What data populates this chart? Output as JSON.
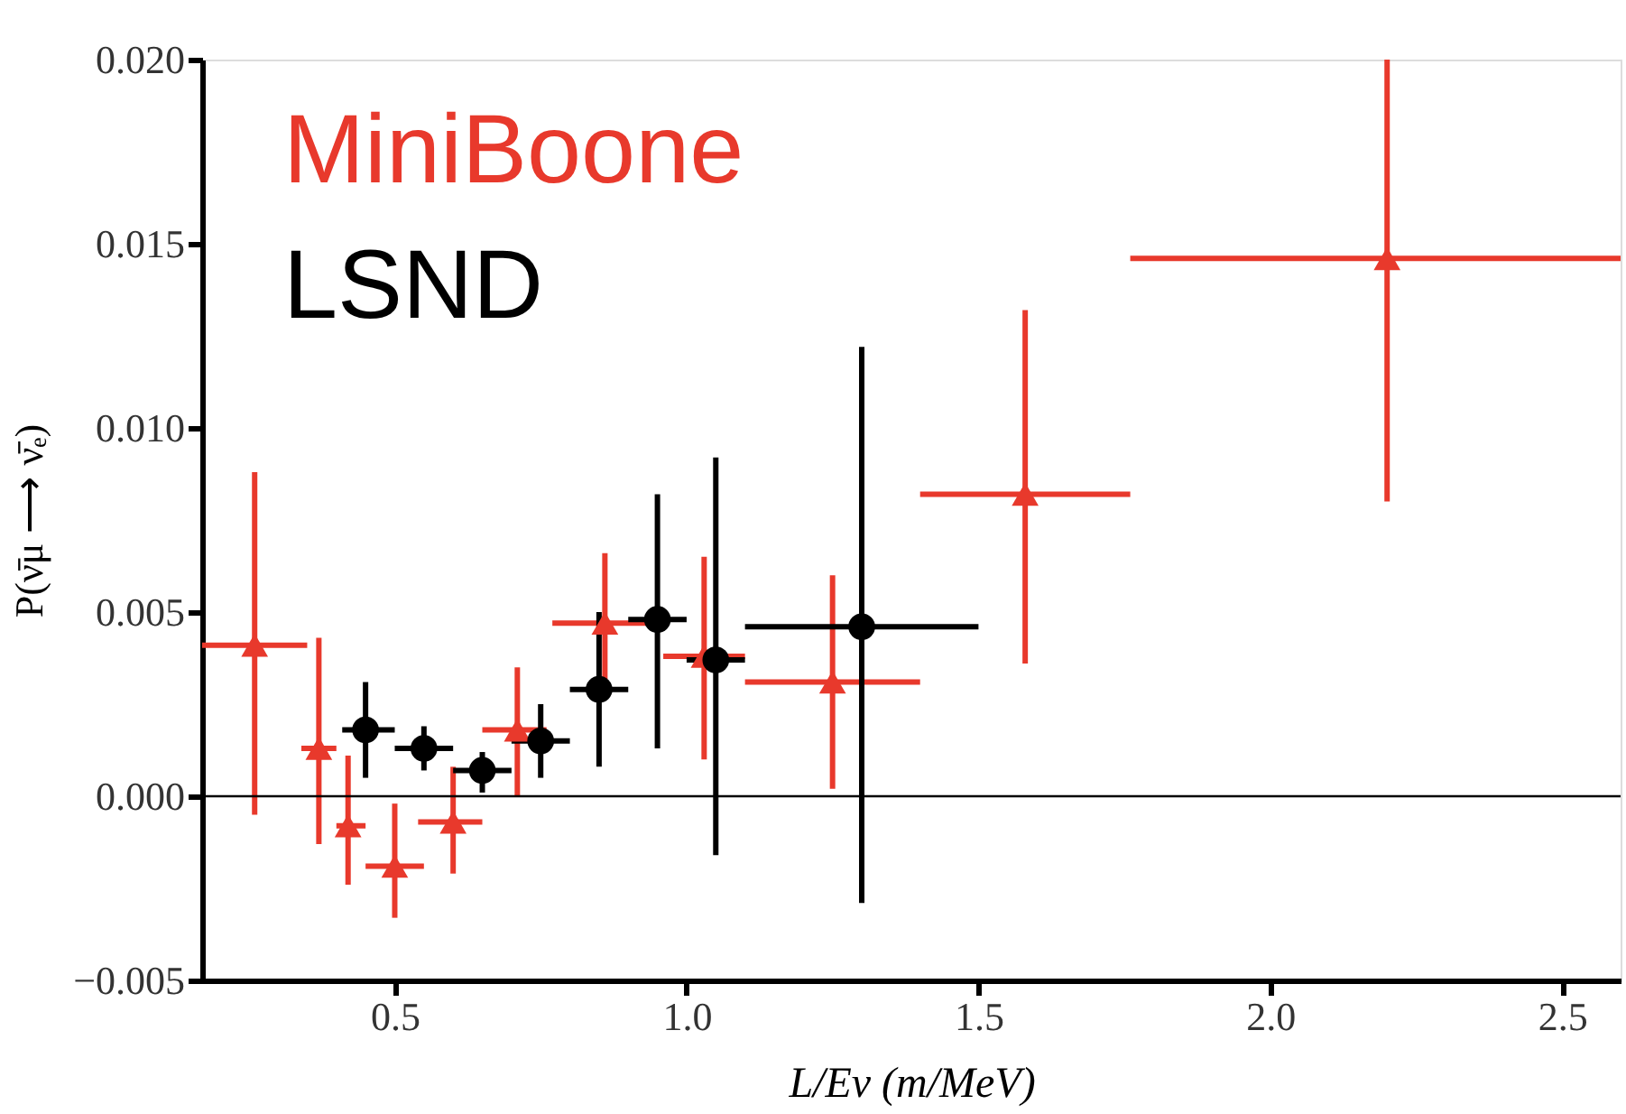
{
  "chart_data": {
    "type": "scatter",
    "xlabel": "L/Eν (m/MeV)",
    "ylabel": "P(ν̄μ ⟶ ν̄ₑ)",
    "series": [
      {
        "name": "MiniBoone",
        "color": "#e8392c",
        "marker": "triangle",
        "x": [
          0.26,
          0.37,
          0.42,
          0.5,
          0.6,
          0.71,
          0.86,
          1.03,
          1.25,
          1.58,
          2.2
        ],
        "values": [
          0.0041,
          0.0013,
          -0.0008,
          -0.0019,
          -0.0007,
          0.0018,
          0.0047,
          0.0038,
          0.0031,
          0.0082,
          0.0146
        ],
        "errors": [
          [
            -0.0005,
            0.0088
          ],
          [
            -0.0013,
            0.0043
          ],
          [
            -0.0024,
            0.0011
          ],
          [
            -0.0033,
            -0.0002
          ],
          [
            -0.0021,
            0.0008
          ],
          [
            0.0,
            0.0035
          ],
          [
            0.003,
            0.0066
          ],
          [
            0.001,
            0.0065
          ],
          [
            0.0002,
            0.006
          ],
          [
            0.0036,
            0.0132
          ],
          [
            0.008,
            0.02
          ]
        ],
        "xerrors": [
          [
            0.17,
            0.35
          ],
          [
            0.34,
            0.4
          ],
          [
            0.4,
            0.45
          ],
          [
            0.45,
            0.55
          ],
          [
            0.54,
            0.65
          ],
          [
            0.65,
            0.76
          ],
          [
            0.77,
            0.96
          ],
          [
            0.96,
            1.1
          ],
          [
            1.1,
            1.4
          ],
          [
            1.4,
            1.76
          ],
          [
            1.76,
            2.6
          ]
        ]
      },
      {
        "name": "LSND",
        "color": "#000000",
        "marker": "circle",
        "x": [
          0.45,
          0.55,
          0.65,
          0.75,
          0.85,
          0.95,
          1.05,
          1.3
        ],
        "values": [
          0.0018,
          0.0013,
          0.0007,
          0.0015,
          0.0029,
          0.0048,
          0.0037,
          0.0046
        ],
        "errors": [
          [
            0.0005,
            0.0031
          ],
          [
            0.0007,
            0.0019
          ],
          [
            0.0001,
            0.0012
          ],
          [
            0.0005,
            0.0025
          ],
          [
            0.0008,
            0.005
          ],
          [
            0.0013,
            0.0082
          ],
          [
            -0.0016,
            0.0092
          ],
          [
            -0.0029,
            0.0122
          ]
        ],
        "xerrors": [
          [
            0.41,
            0.5
          ],
          [
            0.5,
            0.6
          ],
          [
            0.6,
            0.7
          ],
          [
            0.7,
            0.8
          ],
          [
            0.8,
            0.9
          ],
          [
            0.9,
            1.0
          ],
          [
            1.0,
            1.1
          ],
          [
            1.1,
            1.5
          ]
        ]
      }
    ],
    "xlim": [
      0.17,
      2.6
    ],
    "ylim": [
      -0.005,
      0.02
    ],
    "xticks": [
      {
        "value": 0.5,
        "label": "0.5"
      },
      {
        "value": 1.0,
        "label": "1.0"
      },
      {
        "value": 1.5,
        "label": "1.5"
      },
      {
        "value": 2.0,
        "label": "2.0"
      },
      {
        "value": 2.5,
        "label": "2.5"
      }
    ],
    "yticks": [
      {
        "value": -0.005,
        "label": "−0.005"
      },
      {
        "value": 0.0,
        "label": "0.000"
      },
      {
        "value": 0.005,
        "label": "0.005"
      },
      {
        "value": 0.01,
        "label": "0.010"
      },
      {
        "value": 0.015,
        "label": "0.015"
      },
      {
        "value": 0.02,
        "label": "0.020"
      }
    ],
    "ref_lines": [
      {
        "axis": "y",
        "value": 0.0,
        "color": "#000000"
      }
    ],
    "legend": false,
    "grid": false
  }
}
